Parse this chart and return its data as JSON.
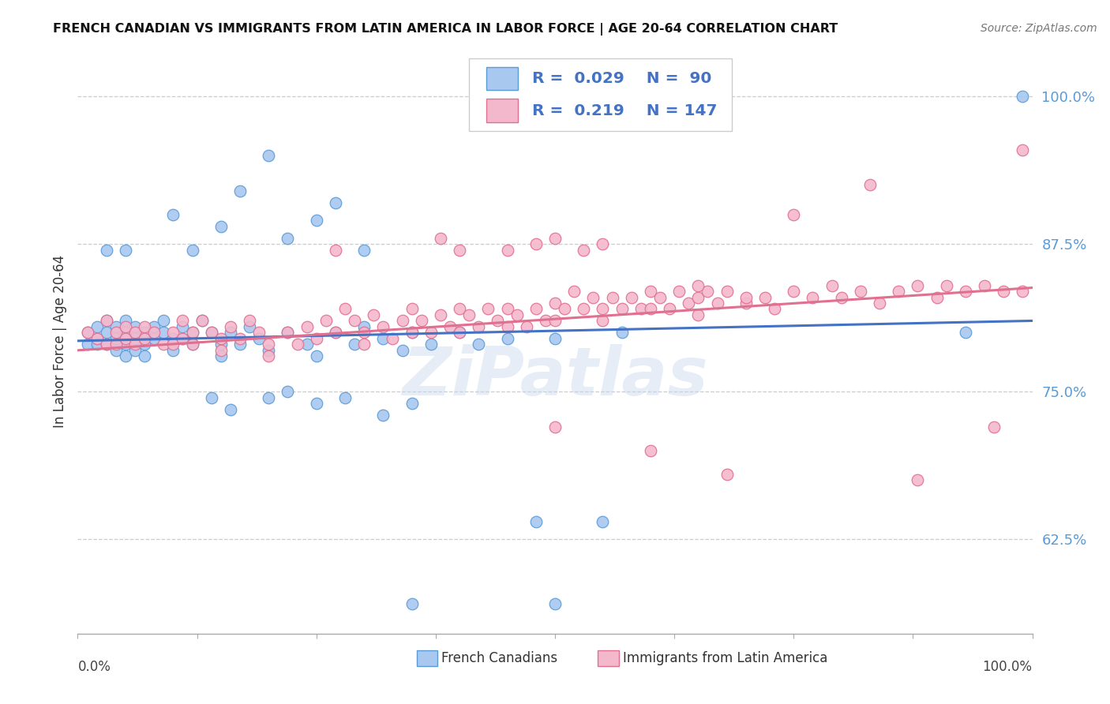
{
  "title": "FRENCH CANADIAN VS IMMIGRANTS FROM LATIN AMERICA IN LABOR FORCE | AGE 20-64 CORRELATION CHART",
  "source": "Source: ZipAtlas.com",
  "ylabel": "In Labor Force | Age 20-64",
  "legend_label1": "French Canadians",
  "legend_label2": "Immigrants from Latin America",
  "legend_R1": "0.029",
  "legend_N1": "90",
  "legend_R2": "0.219",
  "legend_N2": "147",
  "blue_face": "#A8C8F0",
  "blue_edge": "#5B9BD5",
  "pink_face": "#F4B8CC",
  "pink_edge": "#E07090",
  "blue_trend_color": "#4472C4",
  "pink_trend_color": "#E07090",
  "legend_text_color": "#4472C4",
  "grid_color": "#CCCCCC",
  "ytick_color": "#5B9BD5",
  "title_color": "#111111",
  "source_color": "#777777",
  "axis_label_color": "#333333",
  "watermark_color": "#C8D8EE",
  "background": "#FFFFFF",
  "xmin": 0.0,
  "xmax": 1.0,
  "ymin": 0.545,
  "ymax": 1.04,
  "yticks": [
    0.625,
    0.75,
    0.875,
    1.0
  ],
  "ytick_labels": [
    "62.5%",
    "75.0%",
    "87.5%",
    "100.0%"
  ]
}
